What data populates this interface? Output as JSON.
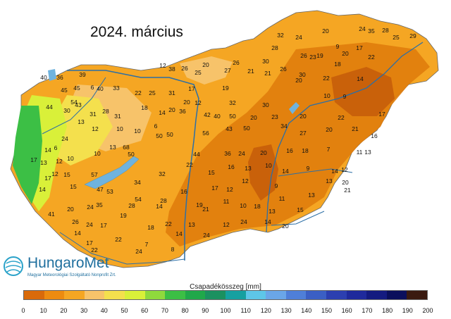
{
  "title": "2024. március",
  "legend": {
    "title": "Csapadékösszeg [mm]",
    "colors": [
      "#d96a0a",
      "#ed8b10",
      "#f5a623",
      "#f7c36a",
      "#f4e04d",
      "#d9f039",
      "#8fd93d",
      "#3cbf45",
      "#20a84a",
      "#1b9160",
      "#16a0a0",
      "#5ec6e8",
      "#6aa6e8",
      "#4f7fd8",
      "#3b5fc4",
      "#2c3fb0",
      "#1f2a9c",
      "#141b80",
      "#0a0f5c",
      "#3a1a10"
    ],
    "ticks": [
      "0",
      "10",
      "20",
      "30",
      "40",
      "50",
      "60",
      "70",
      "80",
      "90",
      "100",
      "110",
      "120",
      "130",
      "140",
      "150",
      "160",
      "170",
      "180",
      "190",
      "200"
    ]
  },
  "logo": {
    "name": "HungaroMet",
    "subtitle": "Magyar Meteorológiai Szolgáltató Nonprofit Zrt."
  },
  "map": {
    "station_values": [
      "32",
      "24",
      "28",
      "24",
      "20",
      "35",
      "29",
      "25",
      "28",
      "9",
      "17",
      "26",
      "23",
      "19",
      "18",
      "22",
      "20",
      "30",
      "26",
      "20",
      "12",
      "26",
      "38",
      "40",
      "36",
      "45",
      "39",
      "25",
      "27",
      "21",
      "21",
      "26",
      "30",
      "20",
      "22",
      "14",
      "6",
      "45",
      "54",
      "43",
      "40",
      "33",
      "22",
      "25",
      "31",
      "17",
      "19",
      "32",
      "30",
      "10",
      "9",
      "44",
      "30",
      "31",
      "28",
      "31",
      "18",
      "14",
      "20",
      "36",
      "20",
      "12",
      "42",
      "40",
      "50",
      "20",
      "23",
      "20",
      "22",
      "17",
      "24",
      "13",
      "12",
      "10",
      "10",
      "6",
      "50",
      "50",
      "56",
      "43",
      "50",
      "34",
      "27",
      "20",
      "21",
      "16",
      "14",
      "6",
      "13",
      "12",
      "10",
      "10",
      "13",
      "68",
      "50",
      "44",
      "36",
      "24",
      "20",
      "16",
      "18",
      "7",
      "11",
      "13",
      "17",
      "12",
      "15",
      "57",
      "47",
      "34",
      "32",
      "22",
      "15",
      "16",
      "13",
      "10",
      "14",
      "9",
      "14",
      "12",
      "17",
      "14",
      "15",
      "53",
      "54",
      "28",
      "16",
      "17",
      "12",
      "12",
      "9",
      "11",
      "13",
      "13",
      "20",
      "20",
      "24",
      "41",
      "35",
      "28",
      "14",
      "19",
      "11",
      "10",
      "18",
      "13",
      "15",
      "21",
      "26",
      "24",
      "17",
      "19",
      "22",
      "18",
      "14",
      "13",
      "24",
      "12",
      "24",
      "14",
      "20",
      "21",
      "14",
      "17",
      "22",
      "8",
      "7",
      "24",
      "22"
    ]
  }
}
